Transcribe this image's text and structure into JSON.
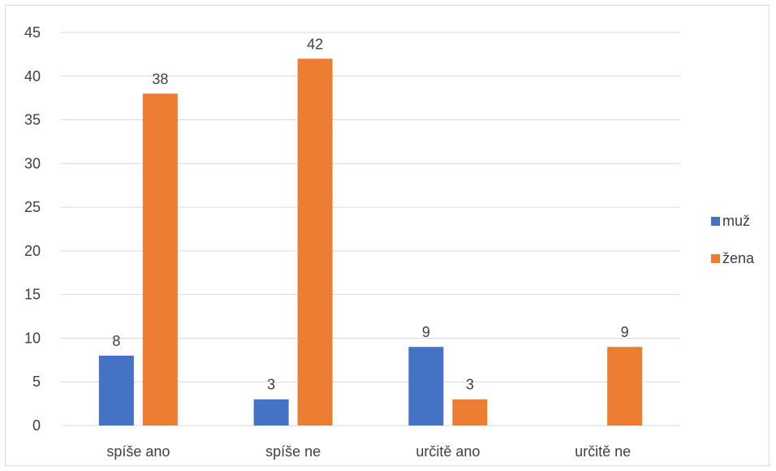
{
  "chart_data": {
    "type": "bar",
    "categories": [
      "spíše ano",
      "spíše ne",
      "určitě ano",
      "určitě ne"
    ],
    "series": [
      {
        "name": "muž",
        "values": [
          8,
          3,
          9,
          null
        ],
        "color": "#4472C4"
      },
      {
        "name": "žena",
        "values": [
          38,
          42,
          3,
          9
        ],
        "color": "#ED7D31"
      }
    ],
    "yticks": [
      "0",
      "5",
      "10",
      "15",
      "20",
      "25",
      "30",
      "35",
      "40",
      "45"
    ],
    "ylim": [
      0,
      45
    ],
    "grid": true,
    "legend_position": "right"
  }
}
